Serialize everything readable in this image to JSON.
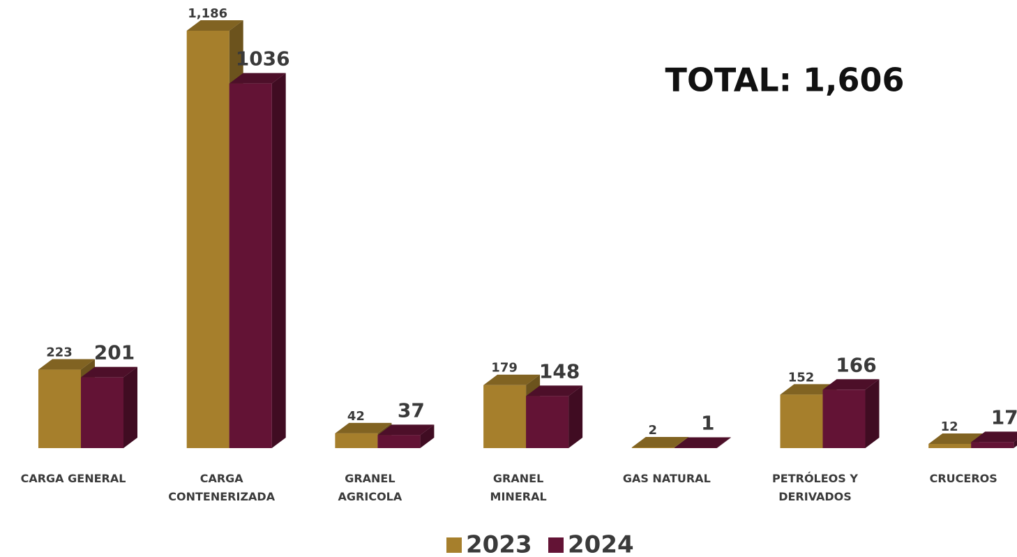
{
  "chart_data": {
    "type": "bar3d",
    "annotation": "TOTAL: 1,606",
    "categories": [
      "CARGA GENERAL",
      "CARGA\nCONTENERIZADA",
      "GRANEL\nAGRICOLA",
      "GRANEL\nMINERAL",
      "GAS NATURAL",
      "PETRÓLEOS Y\nDERIVADOS",
      "CRUCEROS"
    ],
    "series": [
      {
        "name": "2023",
        "color": "#a67f2c",
        "values": [
          223,
          1186,
          42,
          179,
          2,
          152,
          12
        ],
        "value_labels": [
          "223",
          "1,186",
          "42",
          "179",
          "2",
          "152",
          "12"
        ]
      },
      {
        "name": "2024",
        "color": "#631335",
        "values": [
          201,
          1036,
          37,
          148,
          1,
          166,
          17
        ]
      }
    ]
  }
}
